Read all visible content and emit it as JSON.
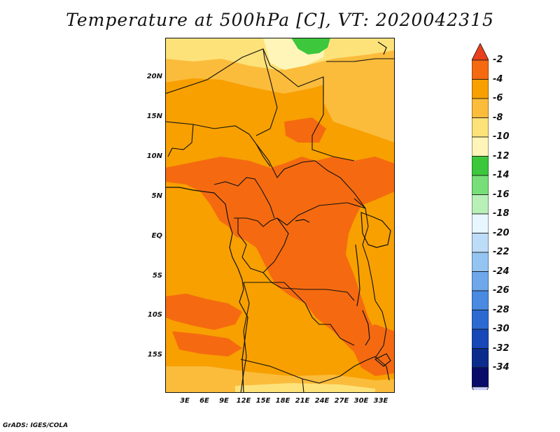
{
  "title": "Temperature at 500hPa [C], VT: 2020042315",
  "credit": "GrADS: IGES/COLA",
  "map": {
    "region": "Central Africa",
    "lat_labels": [
      "20N",
      "15N",
      "10N",
      "5N",
      "EQ",
      "5S",
      "10S",
      "15S"
    ],
    "lon_labels": [
      "3E",
      "6E",
      "9E",
      "12E",
      "15E",
      "18E",
      "21E",
      "24E",
      "27E",
      "30E",
      "33E"
    ]
  },
  "colorbar": {
    "labels": [
      "-2",
      "-4",
      "-6",
      "-8",
      "-10",
      "-12",
      "-14",
      "-16",
      "-18",
      "-20",
      "-22",
      "-24",
      "-26",
      "-28",
      "-30",
      "-32",
      "-34"
    ],
    "colors": [
      "#e8401a",
      "#f56a10",
      "#f7a000",
      "#fbbc3c",
      "#fde27a",
      "#fff5b8",
      "#3cc73c",
      "#78de78",
      "#b8f0b8",
      "#e8f6ff",
      "#bcdcf8",
      "#94c4f2",
      "#6ea8ea",
      "#4a8ae0",
      "#2c6ad2",
      "#1848b8",
      "#0c2c8c",
      "#080c68",
      "#ccccff"
    ]
  }
}
